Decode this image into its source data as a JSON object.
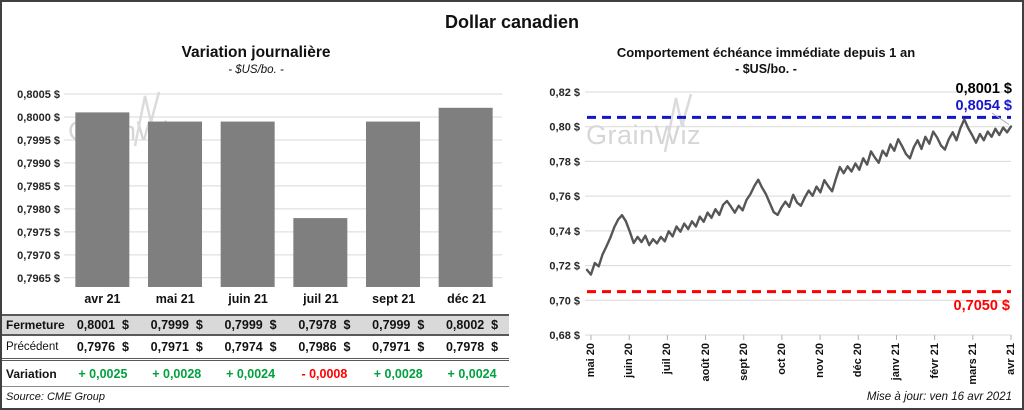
{
  "header": {
    "title": "Dollar canadien"
  },
  "watermark": "GrainWiz",
  "footer": {
    "source": "Source: CME Group",
    "updated": "Mise à jour: ven 16 avr 2021"
  },
  "colors": {
    "bar": "#7f7f7f",
    "line": "#565656",
    "grid": "#d9d9d9",
    "tick": "#b0b0b0",
    "leader": "#b3b3b3",
    "blue": "#1616c8",
    "red": "#ff0000",
    "green": "#00a13e",
    "fermeture_bg": "#d9d9d9"
  },
  "chart_data": [
    {
      "type": "bar",
      "title": "Variation journalière",
      "subtitle": "- $US/bo. -",
      "categories": [
        "avr 21",
        "mai 21",
        "juin 21",
        "juil 21",
        "sept 21",
        "déc 21"
      ],
      "values": [
        0.8001,
        0.7999,
        0.7999,
        0.7978,
        0.7999,
        0.8002
      ],
      "ylim": [
        0.7963,
        0.8005
      ],
      "ytick_values": [
        0.8005,
        0.8,
        0.7995,
        0.799,
        0.7985,
        0.798,
        0.7975,
        0.797,
        0.7965
      ],
      "ytick_labels": [
        "0,8005 $",
        "0,8000 $",
        "0,7995 $",
        "0,7990 $",
        "0,7985 $",
        "0,7980 $",
        "0,7975 $",
        "0,7970 $",
        "0,7965 $"
      ],
      "grid": true,
      "legend": "none"
    },
    {
      "type": "line",
      "title": "Comportement échéance immédiate depuis 1 an",
      "subtitle": "- $US/bo. -",
      "x_labels": [
        "mai 20",
        "juin 20",
        "juil 20",
        "août 20",
        "sept 20",
        "oct 20",
        "nov 20",
        "déc 20",
        "janv 21",
        "févr 21",
        "mars 21",
        "avr 21"
      ],
      "ylim": [
        0.68,
        0.82
      ],
      "ytick_values": [
        0.82,
        0.8,
        0.78,
        0.76,
        0.74,
        0.72,
        0.7,
        0.68
      ],
      "ytick_labels": [
        "0,82 $",
        "0,80 $",
        "0,78 $",
        "0,76 $",
        "0,74 $",
        "0,72 $",
        "0,70 $",
        "0,68 $"
      ],
      "grid": true,
      "legend": "none",
      "annotations": {
        "last_value": 0.8001,
        "last_label": "0,8001 $",
        "high_line": {
          "value": 0.8054,
          "label": "0,8054 $"
        },
        "low_line": {
          "value": 0.705,
          "label": "0,7050 $"
        }
      },
      "values": [
        0.7175,
        0.7148,
        0.7215,
        0.7195,
        0.7265,
        0.731,
        0.736,
        0.742,
        0.7465,
        0.749,
        0.7455,
        0.7395,
        0.733,
        0.7365,
        0.7335,
        0.7372,
        0.7318,
        0.7352,
        0.7328,
        0.7365,
        0.734,
        0.7398,
        0.7368,
        0.7425,
        0.7395,
        0.7442,
        0.741,
        0.7455,
        0.7425,
        0.7482,
        0.7452,
        0.7505,
        0.7475,
        0.7525,
        0.7492,
        0.755,
        0.7572,
        0.754,
        0.7505,
        0.7545,
        0.7518,
        0.7578,
        0.7612,
        0.7658,
        0.7695,
        0.765,
        0.7612,
        0.756,
        0.7508,
        0.7492,
        0.7535,
        0.7568,
        0.7538,
        0.7608,
        0.7562,
        0.7545,
        0.7592,
        0.7632,
        0.7602,
        0.7655,
        0.7622,
        0.7692,
        0.7658,
        0.7628,
        0.7702,
        0.7768,
        0.7732,
        0.7772,
        0.7742,
        0.7788,
        0.7752,
        0.7818,
        0.7782,
        0.7858,
        0.7822,
        0.7792,
        0.7862,
        0.7832,
        0.7898,
        0.7862,
        0.7928,
        0.7888,
        0.7842,
        0.7818,
        0.7882,
        0.7922,
        0.7872,
        0.7942,
        0.7902,
        0.7972,
        0.7938,
        0.7892,
        0.7868,
        0.7928,
        0.7968,
        0.7922,
        0.7992,
        0.8042,
        0.7992,
        0.7952,
        0.7908,
        0.7958,
        0.7922,
        0.7972,
        0.7942,
        0.7988,
        0.7952,
        0.7995,
        0.7968,
        0.8001
      ]
    }
  ],
  "table": {
    "col_headers": [
      "avr 21",
      "mai 21",
      "juin 21",
      "juil 21",
      "sept 21",
      "déc 21"
    ],
    "rows": [
      {
        "label": "Fermeture",
        "values": [
          "0,8001  $",
          "0,7999  $",
          "0,7999  $",
          "0,7978  $",
          "0,7999  $",
          "0,8002  $"
        ]
      },
      {
        "label": "Précédent",
        "values": [
          "0,7976  $",
          "0,7971  $",
          "0,7974  $",
          "0,7986  $",
          "0,7971  $",
          "0,7978  $"
        ]
      },
      {
        "label": "Variation",
        "values": [
          "+ 0,0025",
          "+ 0,0028",
          "+ 0,0024",
          "- 0,0008",
          "+ 0,0028",
          "+ 0,0024"
        ],
        "signs": [
          "pos",
          "pos",
          "pos",
          "neg",
          "pos",
          "pos"
        ]
      }
    ]
  }
}
